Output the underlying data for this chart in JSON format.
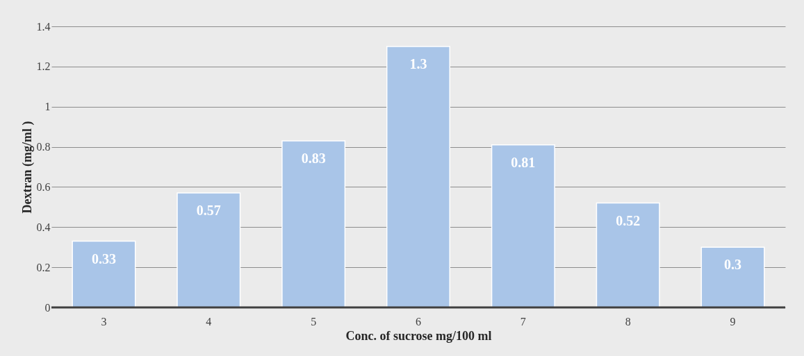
{
  "chart_data": {
    "type": "bar",
    "xlabel": "Conc. of sucrose mg/100 ml",
    "ylabel": "Dextran  (mg/ml )",
    "categories": [
      "3",
      "4",
      "5",
      "6",
      "7",
      "8",
      "9"
    ],
    "values": [
      0.33,
      0.57,
      0.83,
      1.3,
      0.81,
      0.52,
      0.3
    ],
    "color": "#a9c5e8",
    "ylim": [
      0,
      1.4
    ],
    "yticks": [
      0,
      0.2,
      0.4,
      0.6,
      0.8,
      1,
      1.2,
      1.4
    ],
    "grid": "y",
    "data_labels": true
  }
}
